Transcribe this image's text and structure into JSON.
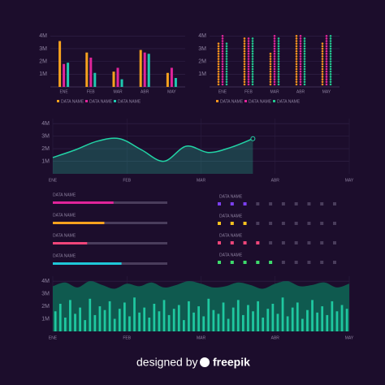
{
  "chart_data": [
    {
      "type": "bar",
      "categories": [
        "ENE",
        "FEB",
        "MAR",
        "ABR",
        "MAY"
      ],
      "ylim": [
        0,
        4.4
      ],
      "yticks": [
        {
          "value": 1,
          "label": "1M"
        },
        {
          "value": 2,
          "label": "2M"
        },
        {
          "value": 3,
          "label": "3M"
        },
        {
          "value": 4,
          "label": "4M"
        }
      ],
      "series": [
        {
          "name": "DATA NAME",
          "color": "#f7a21e",
          "values": [
            3.6,
            2.7,
            1.2,
            2.9,
            1.1
          ]
        },
        {
          "name": "DATA NAME",
          "color": "#e0249a",
          "values": [
            1.8,
            2.3,
            1.5,
            2.7,
            1.5
          ]
        },
        {
          "name": "DATA NAME",
          "color": "#1fc8b0",
          "values": [
            1.9,
            1.1,
            0.6,
            2.6,
            0.7
          ]
        }
      ]
    },
    {
      "type": "dotcolumn",
      "categories": [
        "ENE",
        "FEB",
        "MAR",
        "ABR",
        "MAY"
      ],
      "ylim": [
        0,
        4.4
      ],
      "yticks": [
        {
          "value": 1,
          "label": "1M"
        },
        {
          "value": 2,
          "label": "2M"
        },
        {
          "value": 3,
          "label": "3M"
        },
        {
          "value": 4,
          "label": "4M"
        }
      ],
      "series": [
        {
          "name": "DATA NAME",
          "color": "#f7931e",
          "values": [
            3.4,
            3.8,
            2.6,
            4,
            3.4
          ]
        },
        {
          "name": "DATA NAME",
          "color": "#e0249a",
          "values": [
            4,
            3.8,
            4,
            4,
            4
          ]
        },
        {
          "name": "DATA NAME",
          "color": "#22c58e",
          "values": [
            3.4,
            3.8,
            3.8,
            3.8,
            4
          ]
        }
      ]
    },
    {
      "type": "area",
      "xlim": [
        0,
        4
      ],
      "ylim": [
        0,
        4.4
      ],
      "xticks": [
        {
          "value": 0,
          "label": "ENE"
        },
        {
          "value": 1,
          "label": "FEB"
        },
        {
          "value": 2,
          "label": "MAR"
        },
        {
          "value": 3,
          "label": "ABR"
        },
        {
          "value": 4,
          "label": "MAY"
        }
      ],
      "yticks": [
        {
          "value": 1,
          "label": "1M"
        },
        {
          "value": 2,
          "label": "2M"
        },
        {
          "value": 3,
          "label": "3M"
        },
        {
          "value": 4,
          "label": "4M"
        }
      ],
      "series": [
        {
          "style": "area",
          "color": "#22d3a5",
          "x": [
            0,
            0.3,
            0.6,
            0.9,
            1.2,
            1.5,
            1.8,
            2.1,
            2.4,
            2.7
          ],
          "values": [
            1.3,
            1.9,
            2.6,
            2.8,
            1.9,
            1.0,
            2.2,
            1.7,
            2.1,
            2.8
          ]
        }
      ]
    },
    {
      "type": "progress",
      "xlim": [
        0,
        100
      ],
      "names": [
        "DATA NAME",
        "DATA NAME",
        "DATA NAME",
        "DATA NAME"
      ],
      "values": [
        53,
        45,
        30,
        60
      ],
      "colors": [
        "#e0249a",
        "#f7a21e",
        "#f0457a",
        "#1fc8d8"
      ]
    },
    {
      "type": "dotprogress",
      "xlim": [
        0,
        10
      ],
      "names": [
        "DATA NAME",
        "DATA NAME",
        "DATA NAME",
        "DATA NAME"
      ],
      "values": [
        3,
        3,
        4,
        5
      ],
      "colors": [
        "#7b3ff2",
        "#f7c21e",
        "#f0457a",
        "#3ddc6b"
      ]
    },
    {
      "type": "area",
      "xlim": [
        0,
        4
      ],
      "ylim": [
        0,
        4.4
      ],
      "xticks": [
        {
          "value": 0,
          "label": "ENE"
        },
        {
          "value": 1,
          "label": "FEB"
        },
        {
          "value": 2,
          "label": "MAR"
        },
        {
          "value": 3,
          "label": "ABR"
        },
        {
          "value": 4,
          "label": "MAY"
        }
      ],
      "yticks": [
        {
          "value": 1,
          "label": "1M"
        },
        {
          "value": 2,
          "label": "2M"
        },
        {
          "value": 3,
          "label": "3M"
        },
        {
          "value": 4,
          "label": "4M"
        }
      ],
      "series": [
        {
          "style": "area",
          "color": "#0f5a4f",
          "values": [
            3.6,
            3.9,
            3.5,
            4.0,
            3.7,
            3.4,
            3.8,
            3.6,
            3.9,
            3.5,
            3.7,
            4.0,
            3.8,
            3.5,
            3.6,
            3.9,
            3.7,
            3.4,
            3.8,
            4.0,
            3.6,
            3.7,
            3.9,
            3.5,
            3.8
          ]
        },
        {
          "style": "bar",
          "color": "#1fc8a0",
          "values": [
            1.6,
            2.2,
            1.1,
            2.5,
            1.4,
            1.9,
            0.9,
            2.6,
            1.3,
            2.0,
            1.7,
            2.4,
            1.0,
            1.8,
            2.3,
            1.2,
            2.7,
            1.5,
            1.9,
            1.1,
            2.2,
            1.6,
            2.5,
            1.3,
            1.8,
            2.1,
            0.9,
            2.4,
            1.5,
            2.0,
            1.2,
            2.6,
            1.7,
            1.4,
            2.3,
            1.0,
            1.9,
            2.5,
            1.3,
            2.1,
            1.6,
            2.4,
            1.1,
            1.8,
            2.2,
            1.4,
            2.7,
            1.2,
            1.9,
            2.3,
            1.0,
            1.7,
            2.5,
            1.5,
            2.0,
            1.3,
            2.4,
            1.6,
            2.1,
            1.8
          ]
        }
      ]
    }
  ],
  "footer": {
    "prefix": "designed by",
    "brand": "freepik"
  }
}
